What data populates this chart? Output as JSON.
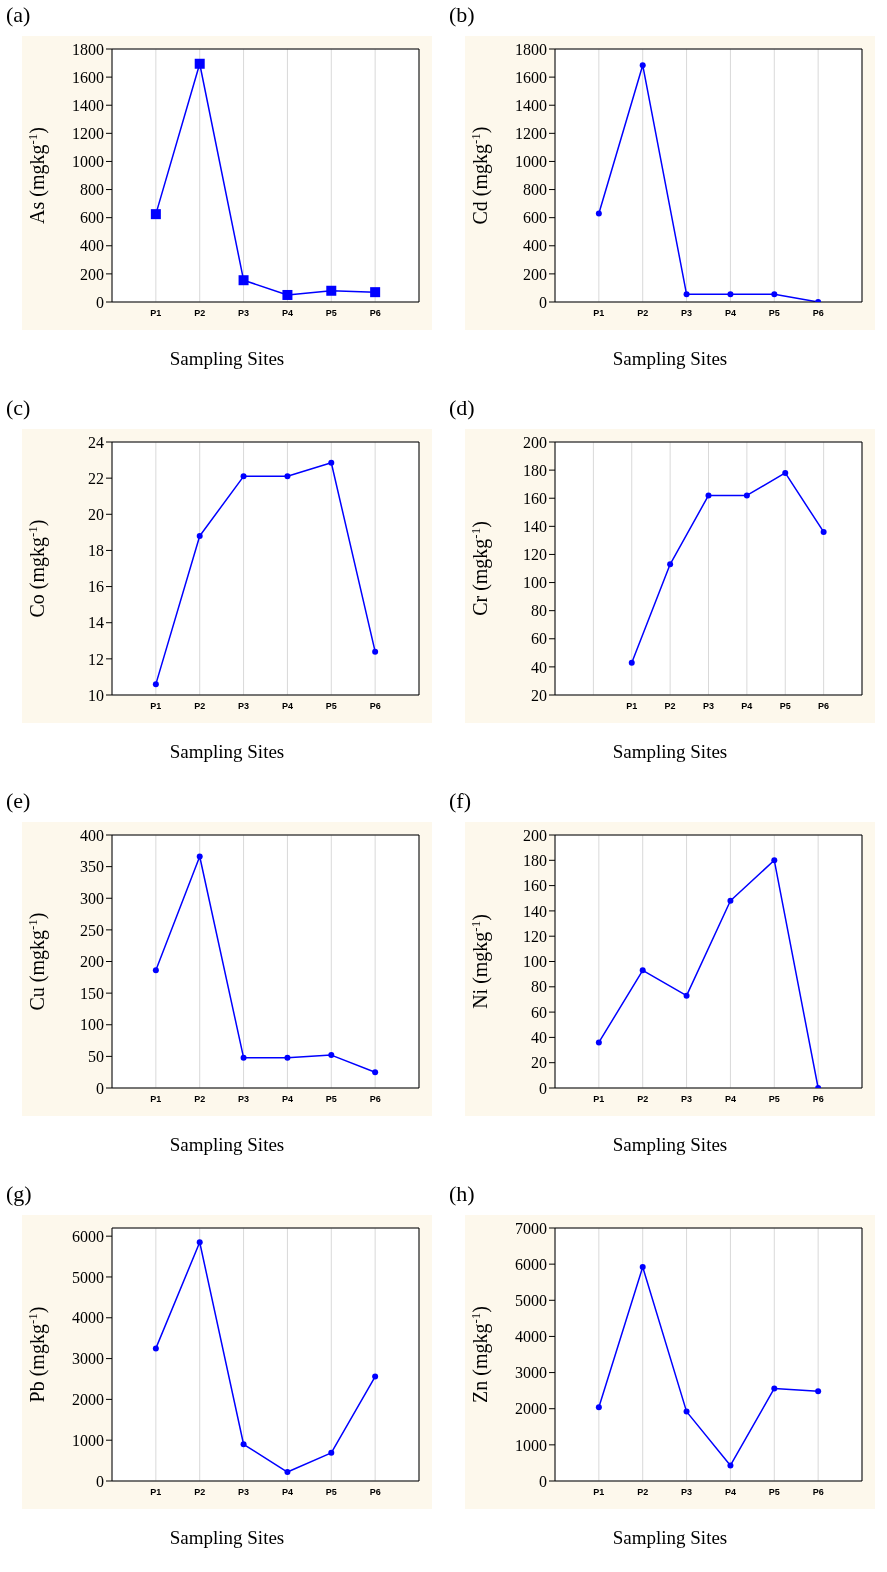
{
  "chart_data": [
    {
      "type": "line",
      "title": "(a)",
      "xlabel": "Sampling Sites",
      "ylabel": "As (mgkg$^{-1}$)",
      "categories": [
        null,
        "P1",
        "P2",
        "P3",
        "P4",
        "P5",
        "P6",
        null
      ],
      "values": [
        null,
        625,
        1695,
        155,
        50,
        80,
        70,
        null
      ],
      "color": "#0000ff",
      "ylim": [
        0,
        1800
      ],
      "yticks": [
        0,
        200,
        400,
        600,
        800,
        1000,
        1200,
        1400,
        1600,
        1800
      ],
      "grid": true,
      "marker": "square"
    },
    {
      "type": "line",
      "title": "(b)",
      "xlabel": "Sampling Sites",
      "ylabel": "Cd (mgkg$^{-1}$)",
      "categories": [
        null,
        "P1",
        "P2",
        "P3",
        "P4",
        "P5",
        "P6",
        null
      ],
      "values": [
        null,
        630,
        1685,
        55,
        55,
        55,
        0,
        null
      ],
      "color": "#0000ff",
      "ylim": [
        0,
        1800
      ],
      "yticks": [
        0,
        200,
        400,
        600,
        800,
        1000,
        1200,
        1400,
        1600,
        1800
      ],
      "grid": true,
      "marker": "circle"
    },
    {
      "type": "line",
      "title": "(c)",
      "xlabel": "Sampling Sites",
      "ylabel": "Co (mgkg$^{-1}$)",
      "categories": [
        null,
        "P1",
        "P2",
        "P3",
        "P4",
        "P5",
        "P6",
        null
      ],
      "values": [
        null,
        10.6,
        18.8,
        22.1,
        22.1,
        22.85,
        12.4,
        null
      ],
      "color": "#0000ff",
      "ylim": [
        10,
        24
      ],
      "yticks": [
        10,
        12,
        14,
        16,
        18,
        20,
        22,
        24
      ],
      "grid": true,
      "marker": "circle"
    },
    {
      "type": "line",
      "title": "(d)",
      "xlabel": "Sampling Sites",
      "ylabel": "Cr (mgkg$^{-1}$)",
      "categories": [
        null,
        null,
        "P1",
        "P2",
        "P3",
        "P4",
        "P5",
        "P6",
        null
      ],
      "values": [
        null,
        null,
        43,
        113,
        162,
        162,
        178,
        136,
        null
      ],
      "color": "#0000ff",
      "ylim": [
        20,
        200
      ],
      "yticks": [
        20,
        40,
        60,
        80,
        100,
        120,
        140,
        160,
        180,
        200
      ],
      "grid": true,
      "marker": "circle"
    },
    {
      "type": "line",
      "title": "(e)",
      "xlabel": "Sampling Sites",
      "ylabel": "Cu (mgkg$^{-1}$)",
      "categories": [
        null,
        "P1",
        "P2",
        "P3",
        "P4",
        "P5",
        "P6",
        null
      ],
      "values": [
        null,
        186,
        366,
        48,
        48,
        52,
        25,
        null
      ],
      "color": "#0000ff",
      "ylim": [
        0,
        400
      ],
      "yticks": [
        0,
        50,
        100,
        150,
        200,
        250,
        300,
        350,
        400
      ],
      "grid": true,
      "marker": "circle"
    },
    {
      "type": "line",
      "title": "(f)",
      "xlabel": "Sampling Sites",
      "ylabel": "Ni (mgkg$^{-1}$)",
      "categories": [
        null,
        "P1",
        "P2",
        "P3",
        "P4",
        "P5",
        "P6",
        null
      ],
      "values": [
        null,
        36,
        93,
        73,
        148,
        180,
        0,
        null
      ],
      "color": "#0000ff",
      "ylim": [
        0,
        200
      ],
      "yticks": [
        0,
        20,
        40,
        60,
        80,
        100,
        120,
        140,
        160,
        180,
        200
      ],
      "grid": true,
      "marker": "circle"
    },
    {
      "type": "line",
      "title": "(g)",
      "xlabel": "Sampling Sites",
      "ylabel": "Pb (mgkg$^{-1}$)",
      "categories": [
        null,
        "P1",
        "P2",
        "P3",
        "P4",
        "P5",
        "P6",
        null
      ],
      "values": [
        null,
        3250,
        5850,
        900,
        220,
        690,
        2560,
        null
      ],
      "color": "#0000ff",
      "ylim": [
        0,
        6200
      ],
      "yticks": [
        0,
        1000,
        2000,
        3000,
        4000,
        5000,
        6000
      ],
      "grid": true,
      "marker": "circle"
    },
    {
      "type": "line",
      "title": "(h)",
      "xlabel": "Sampling Sites",
      "ylabel": "Zn (mgkg$^{-1}$)",
      "categories": [
        null,
        "P1",
        "P2",
        "P3",
        "P4",
        "P5",
        "P6",
        null
      ],
      "values": [
        null,
        2040,
        5920,
        1920,
        430,
        2560,
        2480,
        null
      ],
      "color": "#0000ff",
      "ylim": [
        0,
        7000
      ],
      "yticks": [
        0,
        1000,
        2000,
        3000,
        4000,
        5000,
        6000,
        7000
      ],
      "grid": true,
      "marker": "circle"
    }
  ]
}
